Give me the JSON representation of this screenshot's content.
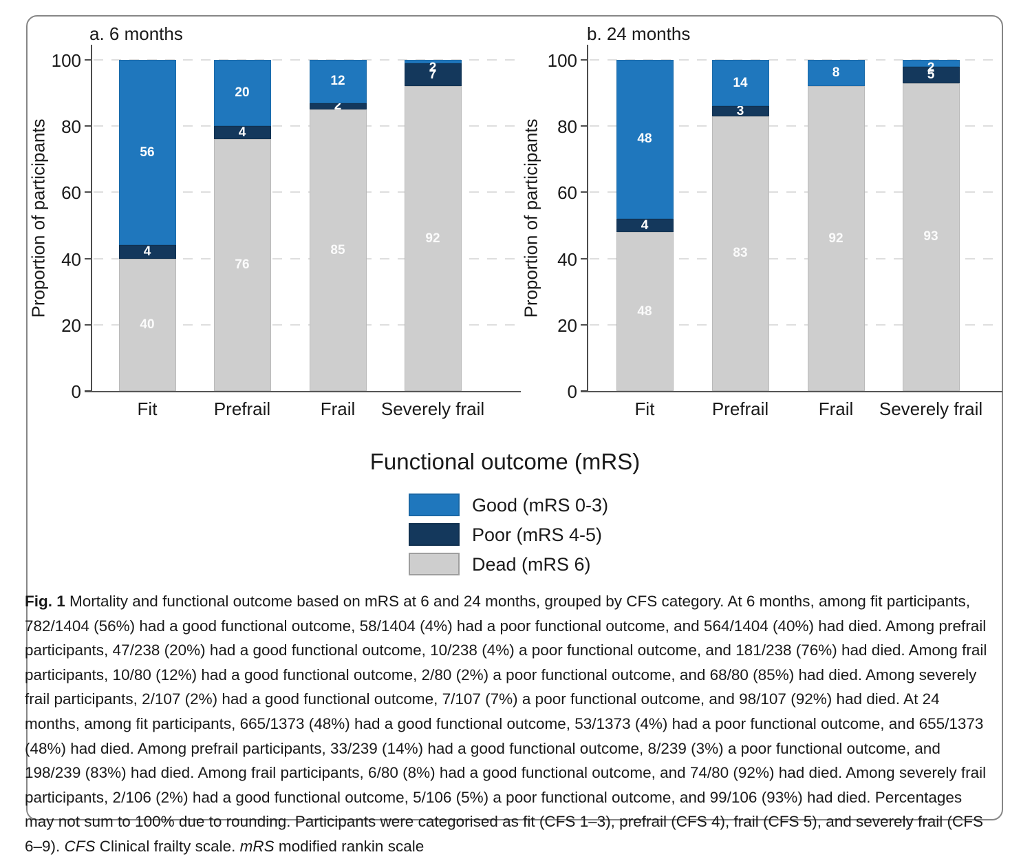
{
  "chart_data": [
    {
      "type": "bar",
      "stacked": true,
      "title": "a. 6 months",
      "ylabel": "Proportion of participants",
      "xlabel": "",
      "ylim": [
        0,
        100
      ],
      "yticks": [
        0,
        20,
        40,
        60,
        80,
        100
      ],
      "grid": "dashed horizontal",
      "categories": [
        "Fit",
        "Prefrail",
        "Frail",
        "Severely frail"
      ],
      "series": [
        {
          "name": "Dead (mRS 6)",
          "color": "#cecece",
          "values": [
            40,
            76,
            85,
            92
          ]
        },
        {
          "name": "Poor (mRS 4-5)",
          "color": "#14385c",
          "values": [
            4,
            4,
            2,
            7
          ]
        },
        {
          "name": "Good (mRS 0-3)",
          "color": "#1f77bd",
          "values": [
            56,
            20,
            12,
            2
          ]
        }
      ]
    },
    {
      "type": "bar",
      "stacked": true,
      "title": "b. 24 months",
      "ylabel": "Proportion of participants",
      "xlabel": "",
      "ylim": [
        0,
        100
      ],
      "yticks": [
        0,
        20,
        40,
        60,
        80,
        100
      ],
      "grid": "dashed horizontal",
      "categories": [
        "Fit",
        "Prefrail",
        "Frail",
        "Severely frail"
      ],
      "series": [
        {
          "name": "Dead (mRS 6)",
          "color": "#cecece",
          "values": [
            48,
            83,
            92,
            93
          ]
        },
        {
          "name": "Poor (mRS 4-5)",
          "color": "#14385c",
          "values": [
            4,
            3,
            0,
            5
          ]
        },
        {
          "name": "Good (mRS 0-3)",
          "color": "#1f77bd",
          "values": [
            48,
            14,
            8,
            2
          ]
        }
      ]
    }
  ],
  "legend": {
    "title": "Functional outcome (mRS)",
    "items": [
      {
        "label": "Good (mRS 0-3)",
        "color": "#1f77bd",
        "border": "rgba(0,0,0,0.12)"
      },
      {
        "label": "Poor (mRS 4-5)",
        "color": "#14385c",
        "border": "rgba(0,0,0,0.12)"
      },
      {
        "label": "Dead (mRS 6)",
        "color": "#cecece",
        "border": "#9e9e9e"
      }
    ]
  },
  "caption": {
    "segments": [
      {
        "text": "Fig. 1",
        "style": "bold"
      },
      {
        "text": "  Mortality and functional outcome based on mRS at 6 and 24 months, grouped by CFS category. At 6 months, among fit participants, 782/1404 (56%) had a good functional outcome, 58/1404 (4%) had a poor functional outcome, and 564/1404 (40%) had died. Among prefrail participants, 47/238 (20%) had a good functional outcome, 10/238 (4%) a poor functional outcome, and 181/238 (76%) had died. Among frail participants, 10/80 (12%) had a good functional outcome, 2/80 (2%) a poor functional outcome, and 68/80 (85%) had died. Among severely frail participants, 2/107 (2%) had a good functional outcome, 7/107 (7%) a poor functional outcome, and 98/107 (92%) had died. At 24 months, among fit participants, 665/1373 (48%) had a good functional outcome, 53/1373 (4%) had a poor functional outcome, and 655/1373 (48%) had died. Among prefrail participants, 33/239 (14%) had a good functional outcome, 8/239 (3%) a poor functional outcome, and 198/239 (83%) had died. Among frail participants, 6/80 (8%) had a good functional outcome, and 74/80 (92%) had died. Among severely frail participants, 2/106 (2%) had a good functional outcome, 5/106 (5%) a poor functional outcome, and 99/106 (93%) had died. Percentages may not sum to 100% due to rounding. Participants were categorised as fit (CFS 1–3), prefrail (CFS 4), frail (CFS 5), and severely frail (CFS 6–9). ",
        "style": "normal"
      },
      {
        "text": "CFS",
        "style": "italic"
      },
      {
        "text": " Clinical frailty scale. ",
        "style": "normal"
      },
      {
        "text": "mRS",
        "style": "italic"
      },
      {
        "text": " modified rankin scale",
        "style": "normal"
      }
    ]
  }
}
